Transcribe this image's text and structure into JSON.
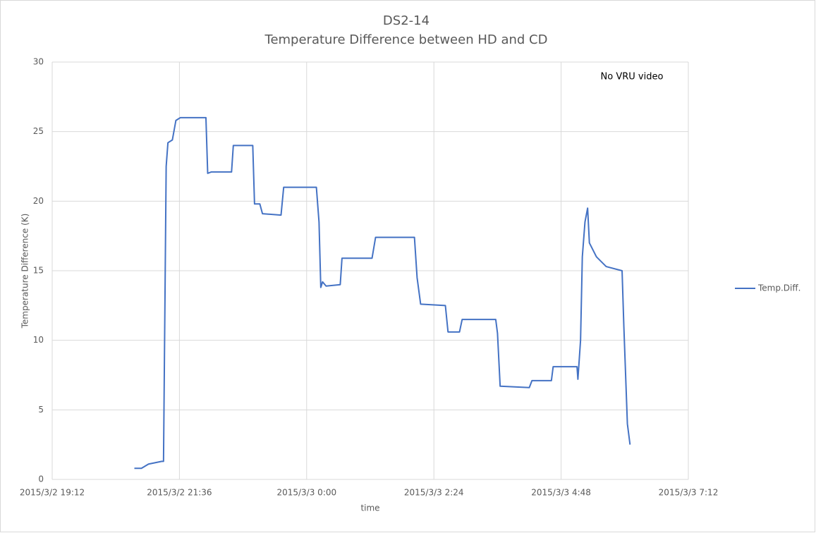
{
  "chart_data": {
    "type": "line",
    "title": "DS2-14",
    "subtitle": "Temperature Difference between HD and CD",
    "x_label": "time",
    "y_label": "Temperature Difference (K)",
    "annotation": "No VRU video",
    "x": [
      "2015/3/2 20:45",
      "2015/3/2 20:53",
      "2015/3/2 21:01",
      "2015/3/2 21:16",
      "2015/3/2 21:18",
      "2015/3/2 21:21",
      "2015/3/2 21:23",
      "2015/3/2 21:28",
      "2015/3/2 21:32",
      "2015/3/2 21:37",
      "2015/3/2 22:06",
      "2015/3/2 22:08",
      "2015/3/2 22:12",
      "2015/3/2 22:35",
      "2015/3/2 22:37",
      "2015/3/2 22:59",
      "2015/3/2 23:01",
      "2015/3/2 23:07",
      "2015/3/2 23:10",
      "2015/3/2 23:31",
      "2015/3/2 23:34",
      "2015/3/3 0:11",
      "2015/3/3 0:14",
      "2015/3/3 0:16",
      "2015/3/3 0:18",
      "2015/3/3 0:22",
      "2015/3/3 0:38",
      "2015/3/3 0:40",
      "2015/3/3 1:14",
      "2015/3/3 1:18",
      "2015/3/3 2:02",
      "2015/3/3 2:05",
      "2015/3/3 2:09",
      "2015/3/3 2:37",
      "2015/3/3 2:40",
      "2015/3/3 2:53",
      "2015/3/3 2:56",
      "2015/3/3 3:34",
      "2015/3/3 3:36",
      "2015/3/3 3:39",
      "2015/3/3 4:12",
      "2015/3/3 4:15",
      "2015/3/3 4:37",
      "2015/3/3 4:39",
      "2015/3/3 5:06",
      "2015/3/3 5:07",
      "2015/3/3 5:10",
      "2015/3/3 5:12",
      "2015/3/3 5:15",
      "2015/3/3 5:18",
      "2015/3/3 5:20",
      "2015/3/3 5:28",
      "2015/3/3 5:39",
      "2015/3/3 5:57",
      "2015/3/3 5:59",
      "2015/3/3 6:03",
      "2015/3/3 6:06"
    ],
    "series": [
      {
        "name": "Temp.Diff.",
        "color": "#4472c4",
        "values": [
          0.8,
          0.8,
          1.1,
          1.3,
          1.3,
          22.5,
          24.2,
          24.4,
          25.8,
          26,
          26,
          22,
          22.1,
          22.1,
          24,
          24,
          19.8,
          19.8,
          19.1,
          19,
          21,
          21,
          18.5,
          13.8,
          14.2,
          13.9,
          14,
          15.9,
          15.9,
          17.4,
          17.4,
          14.5,
          12.6,
          12.5,
          10.6,
          10.6,
          11.5,
          11.5,
          10.5,
          6.7,
          6.6,
          7.1,
          7.1,
          8.1,
          8.1,
          7.2,
          10,
          16,
          18.5,
          19.5,
          17,
          16,
          15.3,
          15,
          11,
          4,
          2.5
        ]
      }
    ],
    "xlim": [
      "2015/3/2 19:12",
      "2015/3/3 7:12"
    ],
    "xticks": [
      "2015/3/2 19:12",
      "2015/3/2 21:36",
      "2015/3/3 0:00",
      "2015/3/3 2:24",
      "2015/3/3 4:48",
      "2015/3/3 7:12"
    ],
    "ylim": [
      0,
      30
    ],
    "yticks": [
      0,
      5,
      10,
      15,
      20,
      25,
      30
    ],
    "grid": true,
    "legend": "right"
  }
}
